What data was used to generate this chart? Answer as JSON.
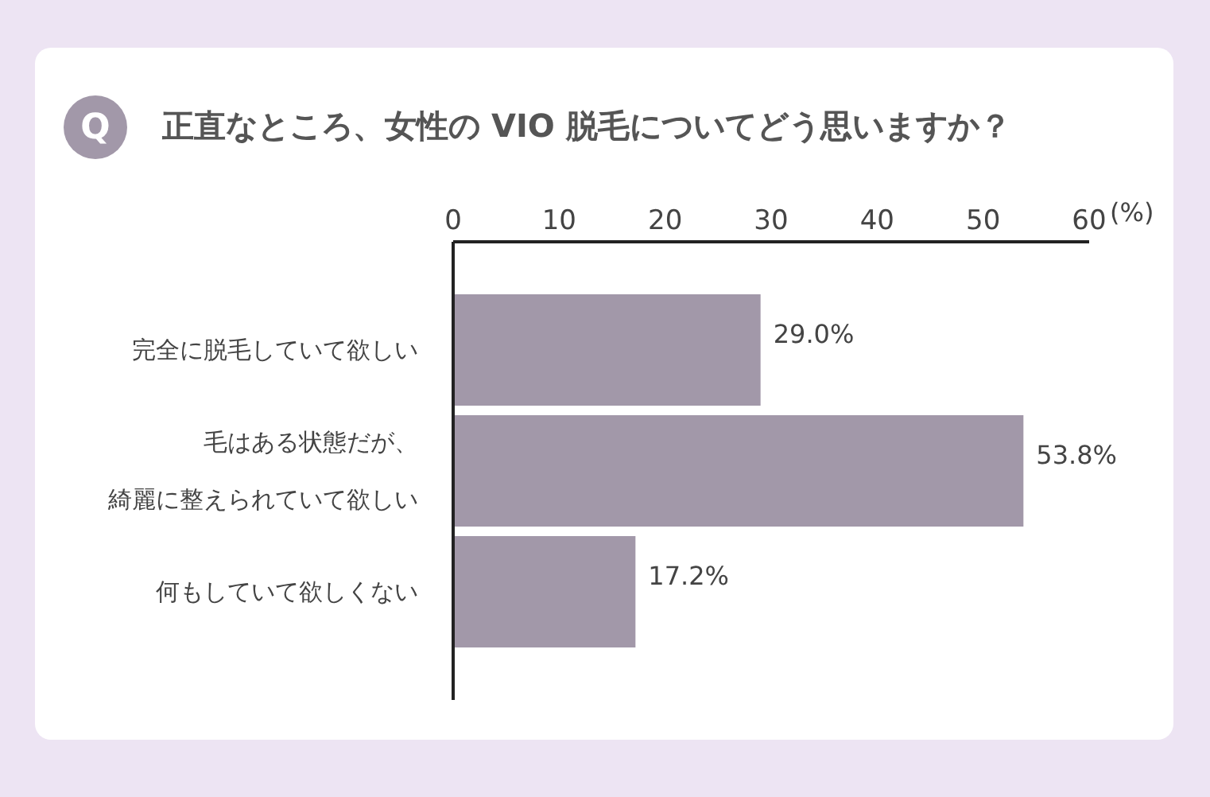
{
  "chart_data": {
    "type": "bar",
    "orientation": "horizontal",
    "title": "正直なところ、女性の VIO 脱毛についてどう思いますか？",
    "annotations": [
      "Q"
    ],
    "xlabel": "(%)",
    "categories": [
      "完全に脱毛していて欲しい",
      "毛はある状態だが、綺麗に整えられていて欲しい",
      "何もしていて欲しくない"
    ],
    "values": [
      29.0,
      53.8,
      17.2
    ],
    "value_labels": [
      "29.0%",
      "53.8%",
      "17.2%"
    ],
    "color": "#a298a9",
    "xlim": [
      0,
      60
    ],
    "xticks": [
      0,
      10,
      20,
      30,
      40,
      50,
      60
    ],
    "grid": false
  }
}
